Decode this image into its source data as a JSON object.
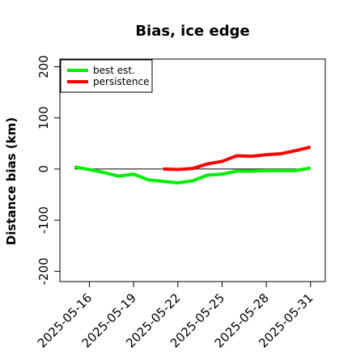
{
  "chart_data": {
    "type": "line",
    "title": "Bias, ice edge",
    "xlabel": "",
    "ylabel": "Distance bias (km)",
    "ylim": [
      -220,
      215
    ],
    "xlim": [
      "2025-05-14",
      "2025-06-01"
    ],
    "yticks": [
      -200,
      -100,
      0,
      100,
      200
    ],
    "xtick_labels": [
      "2025-05-16",
      "2025-05-19",
      "2025-05-22",
      "2025-05-25",
      "2025-05-28",
      "2025-05-31"
    ],
    "grid": false,
    "reference_line_y": 0,
    "legend": {
      "placement": "top-left"
    },
    "series": [
      {
        "name": "best est.",
        "color": "#00ee00",
        "x": [
          "2025-05-15",
          "2025-05-16",
          "2025-05-17",
          "2025-05-18",
          "2025-05-19",
          "2025-05-20",
          "2025-05-21",
          "2025-05-22",
          "2025-05-23",
          "2025-05-24",
          "2025-05-25",
          "2025-05-26",
          "2025-05-27",
          "2025-05-28",
          "2025-05-29",
          "2025-05-30",
          "2025-05-31"
        ],
        "y": [
          4,
          -1,
          -7,
          -14,
          -10,
          -21,
          -24,
          -27,
          -23,
          -12,
          -10,
          -4,
          -4,
          -3,
          -3,
          -3,
          2
        ]
      },
      {
        "name": "persistence",
        "color": "#ff0000",
        "x": [
          "2025-05-21",
          "2025-05-22",
          "2025-05-23",
          "2025-05-24",
          "2025-05-25",
          "2025-05-26",
          "2025-05-27",
          "2025-05-28",
          "2025-05-29",
          "2025-05-30",
          "2025-05-31"
        ],
        "y": [
          0,
          -1,
          1,
          10,
          15,
          26,
          25,
          28,
          30,
          36,
          43
        ]
      }
    ]
  }
}
